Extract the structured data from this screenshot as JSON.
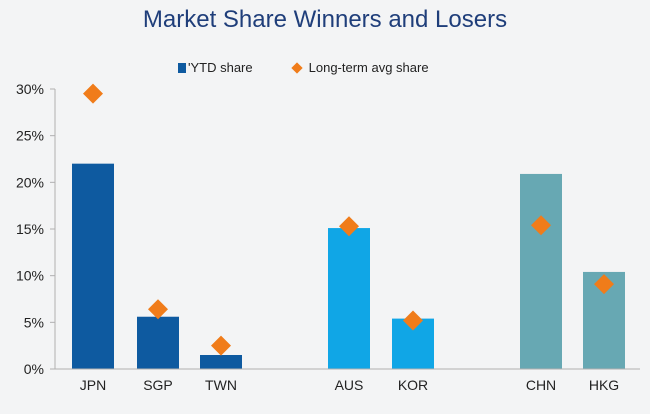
{
  "chart_data": {
    "type": "bar",
    "title": "Market Share Winners and Losers",
    "xlabel": "",
    "ylabel": "",
    "ylim": [
      0,
      30
    ],
    "yticks": [
      "0%",
      "5%",
      "10%",
      "15%",
      "20%",
      "25%",
      "30%"
    ],
    "ytick_values": [
      0,
      5,
      10,
      15,
      20,
      25,
      30
    ],
    "categories": [
      "JPN",
      "SGP",
      "TWN",
      "AUS",
      "KOR",
      "CHN",
      "HKG"
    ],
    "series": [
      {
        "name": "'YTD share",
        "type": "bar",
        "values": [
          22.0,
          5.6,
          1.5,
          15.1,
          5.4,
          20.9,
          10.4
        ],
        "colors": [
          "#0e5aa0",
          "#0e5aa0",
          "#0e5aa0",
          "#10a6e6",
          "#10a6e6",
          "#67a8b3",
          "#67a8b3"
        ]
      },
      {
        "name": "Long-term avg share",
        "type": "scatter",
        "marker": "diamond",
        "color": "#f07c1a",
        "values": [
          29.5,
          6.4,
          2.5,
          15.3,
          5.2,
          15.4,
          9.1
        ]
      }
    ],
    "legend_position": "top-center",
    "grid": false
  }
}
